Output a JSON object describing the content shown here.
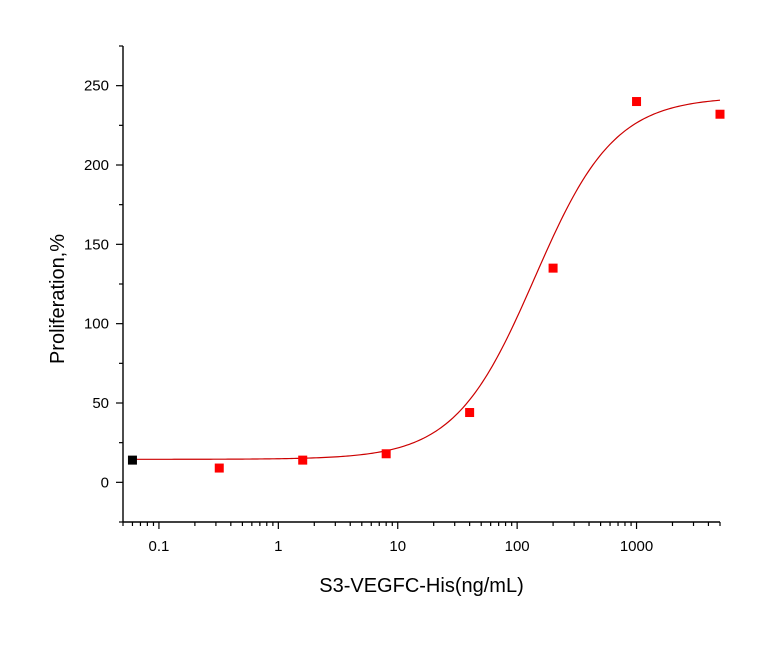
{
  "chart_data": {
    "type": "scatter",
    "title": "",
    "xlabel": "S3-VEGFC-His(ng/mL)",
    "ylabel": "Proliferation,%",
    "x_scale": "log",
    "xlim": [
      0.05,
      5000
    ],
    "ylim": [
      -25,
      275
    ],
    "x_ticks": [
      0.1,
      1,
      10,
      100,
      1000
    ],
    "x_tick_labels": [
      "0.1",
      "1",
      "10",
      "100",
      "1000"
    ],
    "y_ticks": [
      0,
      50,
      100,
      150,
      200,
      250
    ],
    "y_tick_labels": [
      "0",
      "50",
      "100",
      "150",
      "200",
      "250"
    ],
    "grid": false,
    "legend": "none",
    "series": [
      {
        "kind": "points",
        "color": "#ff0000",
        "x": [
          0.06,
          0.32,
          1.6,
          8,
          40,
          200,
          1000,
          5000
        ],
        "y": [
          14,
          9,
          14,
          18,
          44,
          135,
          240,
          232
        ],
        "point_colors": [
          "#000000",
          "#ff0000",
          "#ff0000",
          "#ff0000",
          "#ff0000",
          "#ff0000",
          "#ff0000",
          "#ff0000"
        ]
      },
      {
        "kind": "fit-curve",
        "color": "#cc0000",
        "model": "4PL",
        "bottom": 14.5,
        "top": 243,
        "ec50": 140,
        "hill": 1.3,
        "x_range": [
          0.06,
          5000
        ]
      }
    ]
  }
}
